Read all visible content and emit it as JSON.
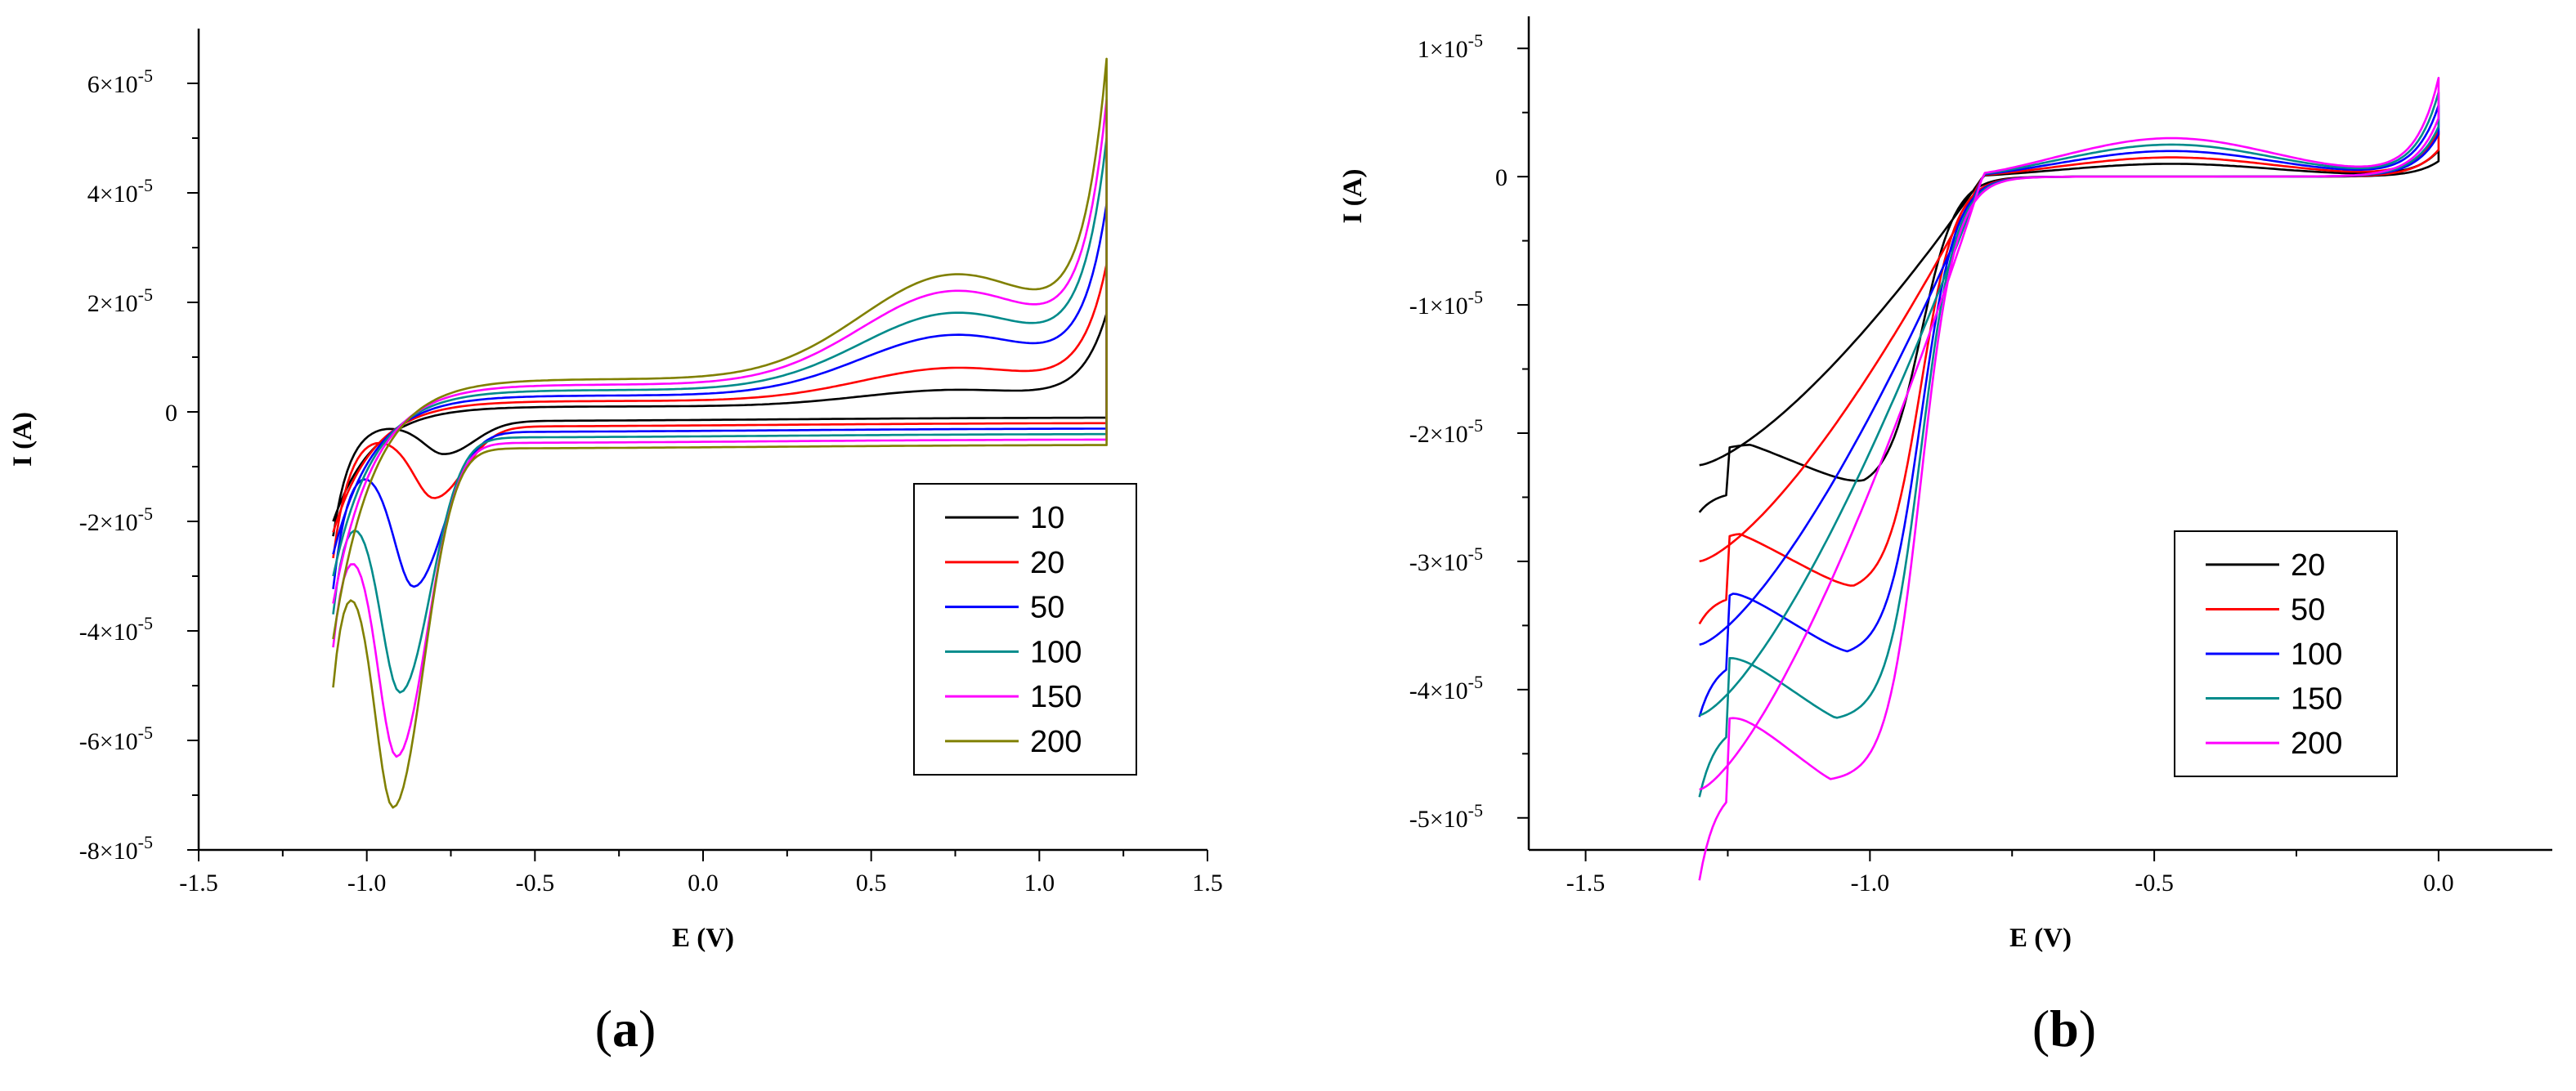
{
  "chart_data": [
    {
      "type": "line",
      "panel_label": "(a)",
      "panel_label_parts": [
        "(",
        "a",
        ")"
      ],
      "xlabel": "E (V)",
      "ylabel": "I (A)",
      "xlim": [
        -1.5,
        1.5
      ],
      "ylim": [
        -8e-05,
        7e-05
      ],
      "xticks": [
        -1.5,
        -1.0,
        -0.5,
        0.0,
        0.5,
        1.0,
        1.5
      ],
      "xtick_labels": [
        "-1.5",
        "-1.0",
        "-0.5",
        "0.0",
        "0.5",
        "1.0",
        "1.5"
      ],
      "yticks": [
        6e-05,
        4e-05,
        2e-05,
        0,
        -2e-05,
        -4e-05,
        -6e-05,
        -8e-05
      ],
      "ytick_labels": [
        {
          "mant": "6×10",
          "exp": "-5"
        },
        {
          "mant": "4×10",
          "exp": "-5"
        },
        {
          "mant": "2×10",
          "exp": "-5"
        },
        {
          "mant": "0",
          "exp": ""
        },
        {
          "mant": "-2×10",
          "exp": "-5"
        },
        {
          "mant": "-4×10",
          "exp": "-5"
        },
        {
          "mant": "-6×10",
          "exp": "-5"
        },
        {
          "mant": "-8×10",
          "exp": "-5"
        }
      ],
      "cv": {
        "e_low": -1.1,
        "e_high": 1.2
      },
      "legend_position": "right-middle",
      "series": [
        {
          "name": "10",
          "color": "#000000",
          "peak_e": -0.77,
          "peak_i": -6e-06,
          "ox_i": 1.7e-05,
          "hump_i": 3e-06,
          "cap": 5e-07,
          "start_i": -2.1e-05,
          "shoulder_i": -5e-06
        },
        {
          "name": "20",
          "color": "#ff0000",
          "peak_e": -0.8,
          "peak_i": -1.3e-05,
          "ox_i": 2.5e-05,
          "hump_i": 6e-06,
          "cap": 1e-06,
          "start_i": -2.4e-05,
          "shoulder_i": -8e-06
        },
        {
          "name": "50",
          "color": "#0000ff",
          "peak_e": -0.86,
          "peak_i": -2.8e-05,
          "ox_i": 3.5e-05,
          "hump_i": 1.1e-05,
          "cap": 1.5e-06,
          "start_i": -2.9e-05,
          "shoulder_i": -1.8e-05
        },
        {
          "name": "100",
          "color": "#008b8b",
          "peak_e": -0.9,
          "peak_i": -4.6e-05,
          "ox_i": 4.6e-05,
          "hump_i": 1.4e-05,
          "cap": 2e-06,
          "start_i": -3.4e-05,
          "shoulder_i": -3.2e-05
        },
        {
          "name": "150",
          "color": "#ff00ff",
          "peak_e": -0.91,
          "peak_i": -5.65e-05,
          "ox_i": 5.2e-05,
          "hump_i": 1.7e-05,
          "cap": 2.5e-06,
          "start_i": -4e-05,
          "shoulder_i": -4e-05
        },
        {
          "name": "200",
          "color": "#808000",
          "peak_e": -0.92,
          "peak_i": -6.45e-05,
          "ox_i": 5.85e-05,
          "hump_i": 1.9e-05,
          "cap": 3e-06,
          "start_i": -4.75e-05,
          "shoulder_i": -4.8e-05
        }
      ]
    },
    {
      "type": "line",
      "panel_label": "(b)",
      "panel_label_parts": [
        "(",
        "b",
        ")"
      ],
      "xlabel": "E (V)",
      "ylabel": "I (A)",
      "xlim": [
        -1.6,
        0.2
      ],
      "ylim": [
        -5.25e-05,
        1.25e-05
      ],
      "xticks": [
        -1.5,
        -1.0,
        -0.5,
        0.0
      ],
      "xtick_labels": [
        "-1.5",
        "-1.0",
        "-0.5",
        "0.0"
      ],
      "yticks": [
        1e-05,
        0,
        -1e-05,
        -2e-05,
        -3e-05,
        -4e-05,
        -5e-05
      ],
      "ytick_labels": [
        {
          "mant": "1×10",
          "exp": "-5"
        },
        {
          "mant": "0",
          "exp": ""
        },
        {
          "mant": "-1×10",
          "exp": "-5"
        },
        {
          "mant": "-2×10",
          "exp": "-5"
        },
        {
          "mant": "-3×10",
          "exp": "-5"
        },
        {
          "mant": "-4×10",
          "exp": "-5"
        },
        {
          "mant": "-5×10",
          "exp": "-5"
        }
      ],
      "cv": {
        "e_low": -1.3,
        "e_high": 0.0
      },
      "legend_position": "right-middle",
      "series": [
        {
          "name": "20",
          "color": "#000000",
          "peak_e": -1.01,
          "peak_i": -2.45e-05,
          "start_i": -2.25e-05,
          "top_i": 2e-06,
          "hump_i": 1e-06
        },
        {
          "name": "50",
          "color": "#ff0000",
          "peak_e": -1.03,
          "peak_i": -3.25e-05,
          "start_i": -3e-05,
          "top_i": 3.5e-06,
          "hump_i": 1.5e-06
        },
        {
          "name": "100",
          "color": "#0000ff",
          "peak_e": -1.04,
          "peak_i": -3.75e-05,
          "start_i": -3.65e-05,
          "top_i": 5.5e-06,
          "hump_i": 2e-06
        },
        {
          "name": "150",
          "color": "#008b8b",
          "peak_e": -1.06,
          "peak_i": -4.25e-05,
          "start_i": -4.2e-05,
          "top_i": 6.5e-06,
          "hump_i": 2.5e-06
        },
        {
          "name": "200",
          "color": "#ff00ff",
          "peak_e": -1.07,
          "peak_i": -4.72e-05,
          "start_i": -4.78e-05,
          "top_i": 7.6e-06,
          "hump_i": 3e-06
        }
      ]
    }
  ]
}
